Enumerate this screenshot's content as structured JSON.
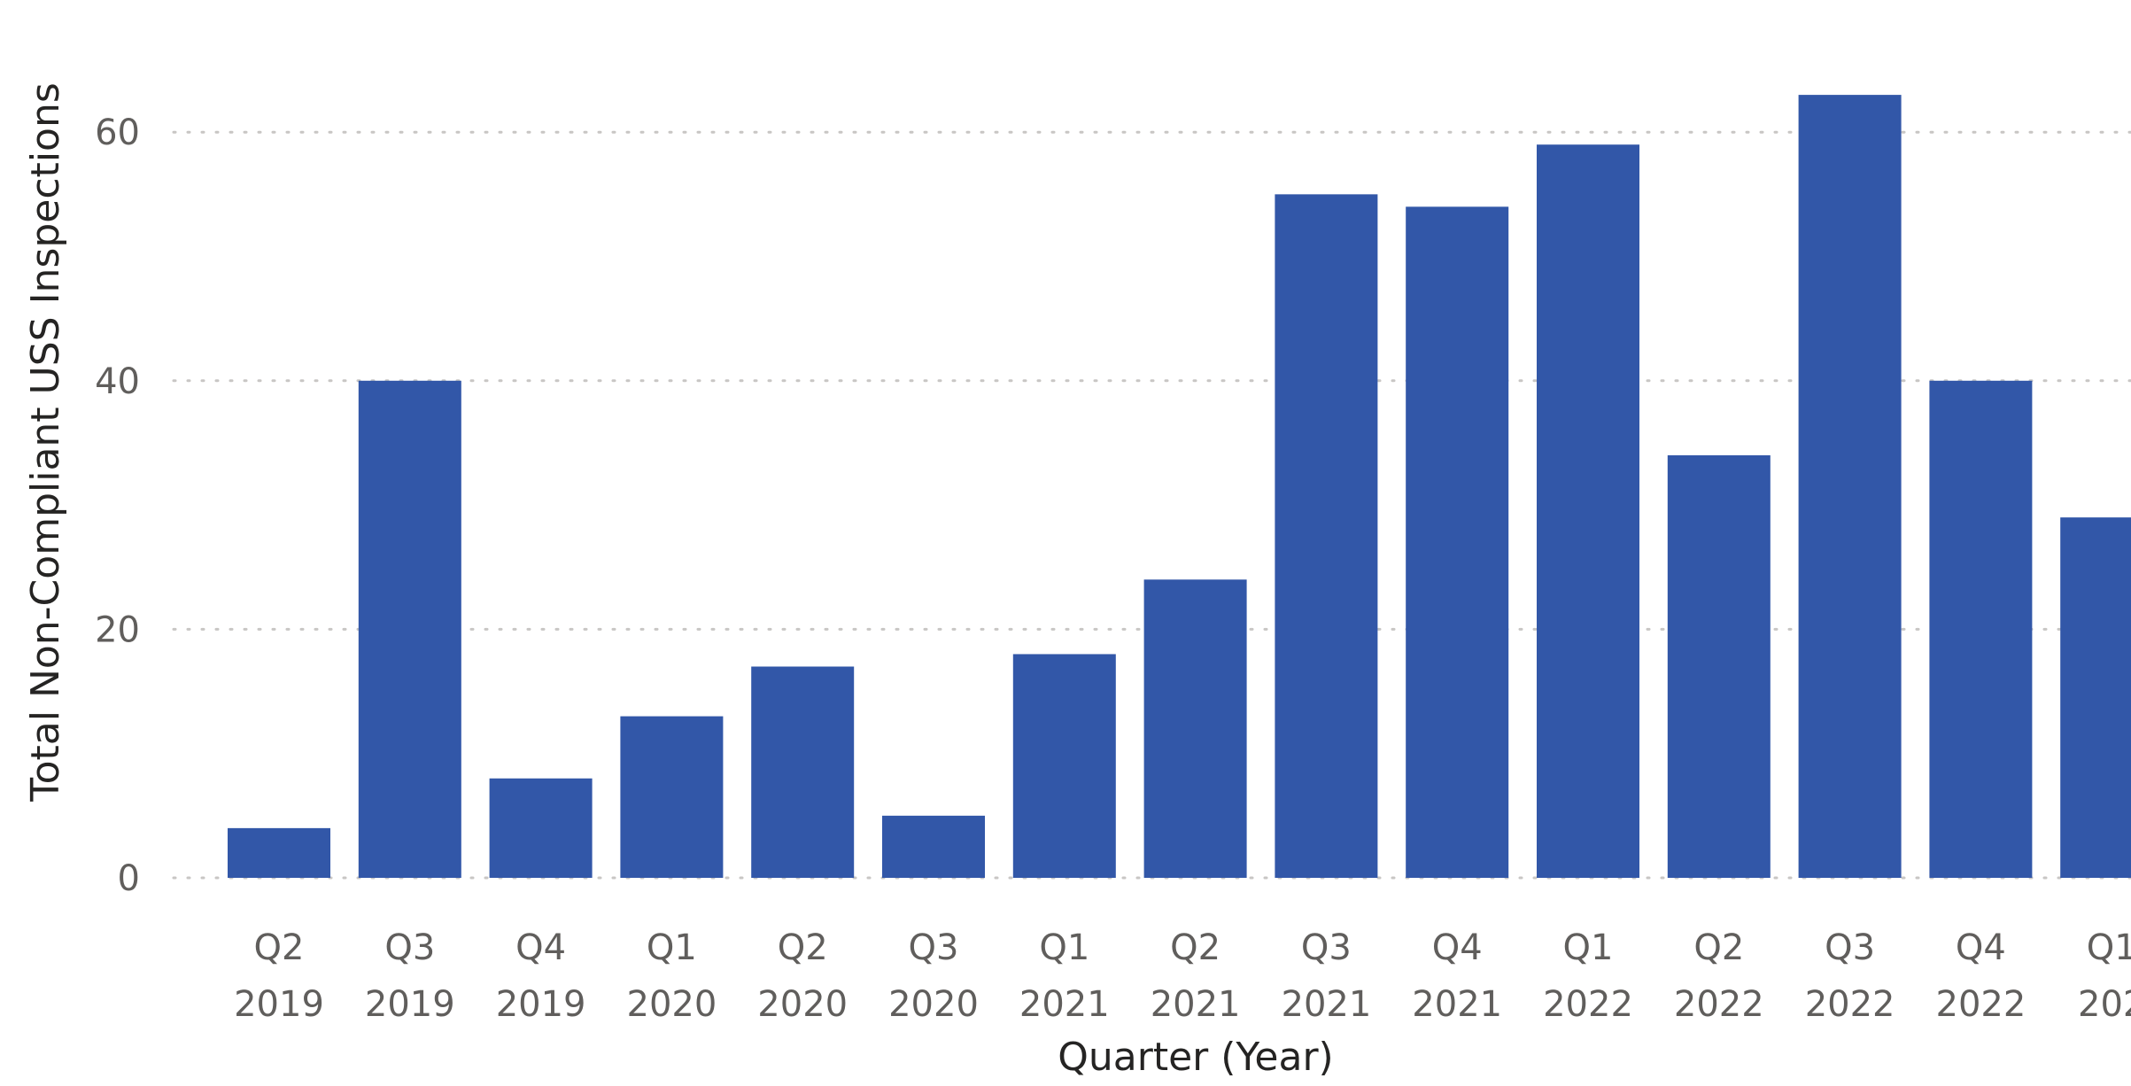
{
  "chart_data": {
    "type": "bar",
    "categories": [
      [
        "Q2",
        "2019"
      ],
      [
        "Q3",
        "2019"
      ],
      [
        "Q4",
        "2019"
      ],
      [
        "Q1",
        "2020"
      ],
      [
        "Q2",
        "2020"
      ],
      [
        "Q3",
        "2020"
      ],
      [
        "Q1",
        "2021"
      ],
      [
        "Q2",
        "2021"
      ],
      [
        "Q3",
        "2021"
      ],
      [
        "Q4",
        "2021"
      ],
      [
        "Q1",
        "2022"
      ],
      [
        "Q2",
        "2022"
      ],
      [
        "Q3",
        "2022"
      ],
      [
        "Q4",
        "2022"
      ],
      [
        "Q1",
        "202"
      ]
    ],
    "values": [
      4,
      40,
      8,
      13,
      17,
      5,
      18,
      24,
      55,
      54,
      59,
      34,
      63,
      40,
      29
    ],
    "xlabel": "Quarter (Year)",
    "ylabel": "Total Non-Compliant USS Inspections",
    "ylim": [
      0,
      70
    ],
    "yticks": [
      0,
      20,
      40,
      60
    ],
    "grid": true,
    "bar_color": "#3257a8"
  }
}
